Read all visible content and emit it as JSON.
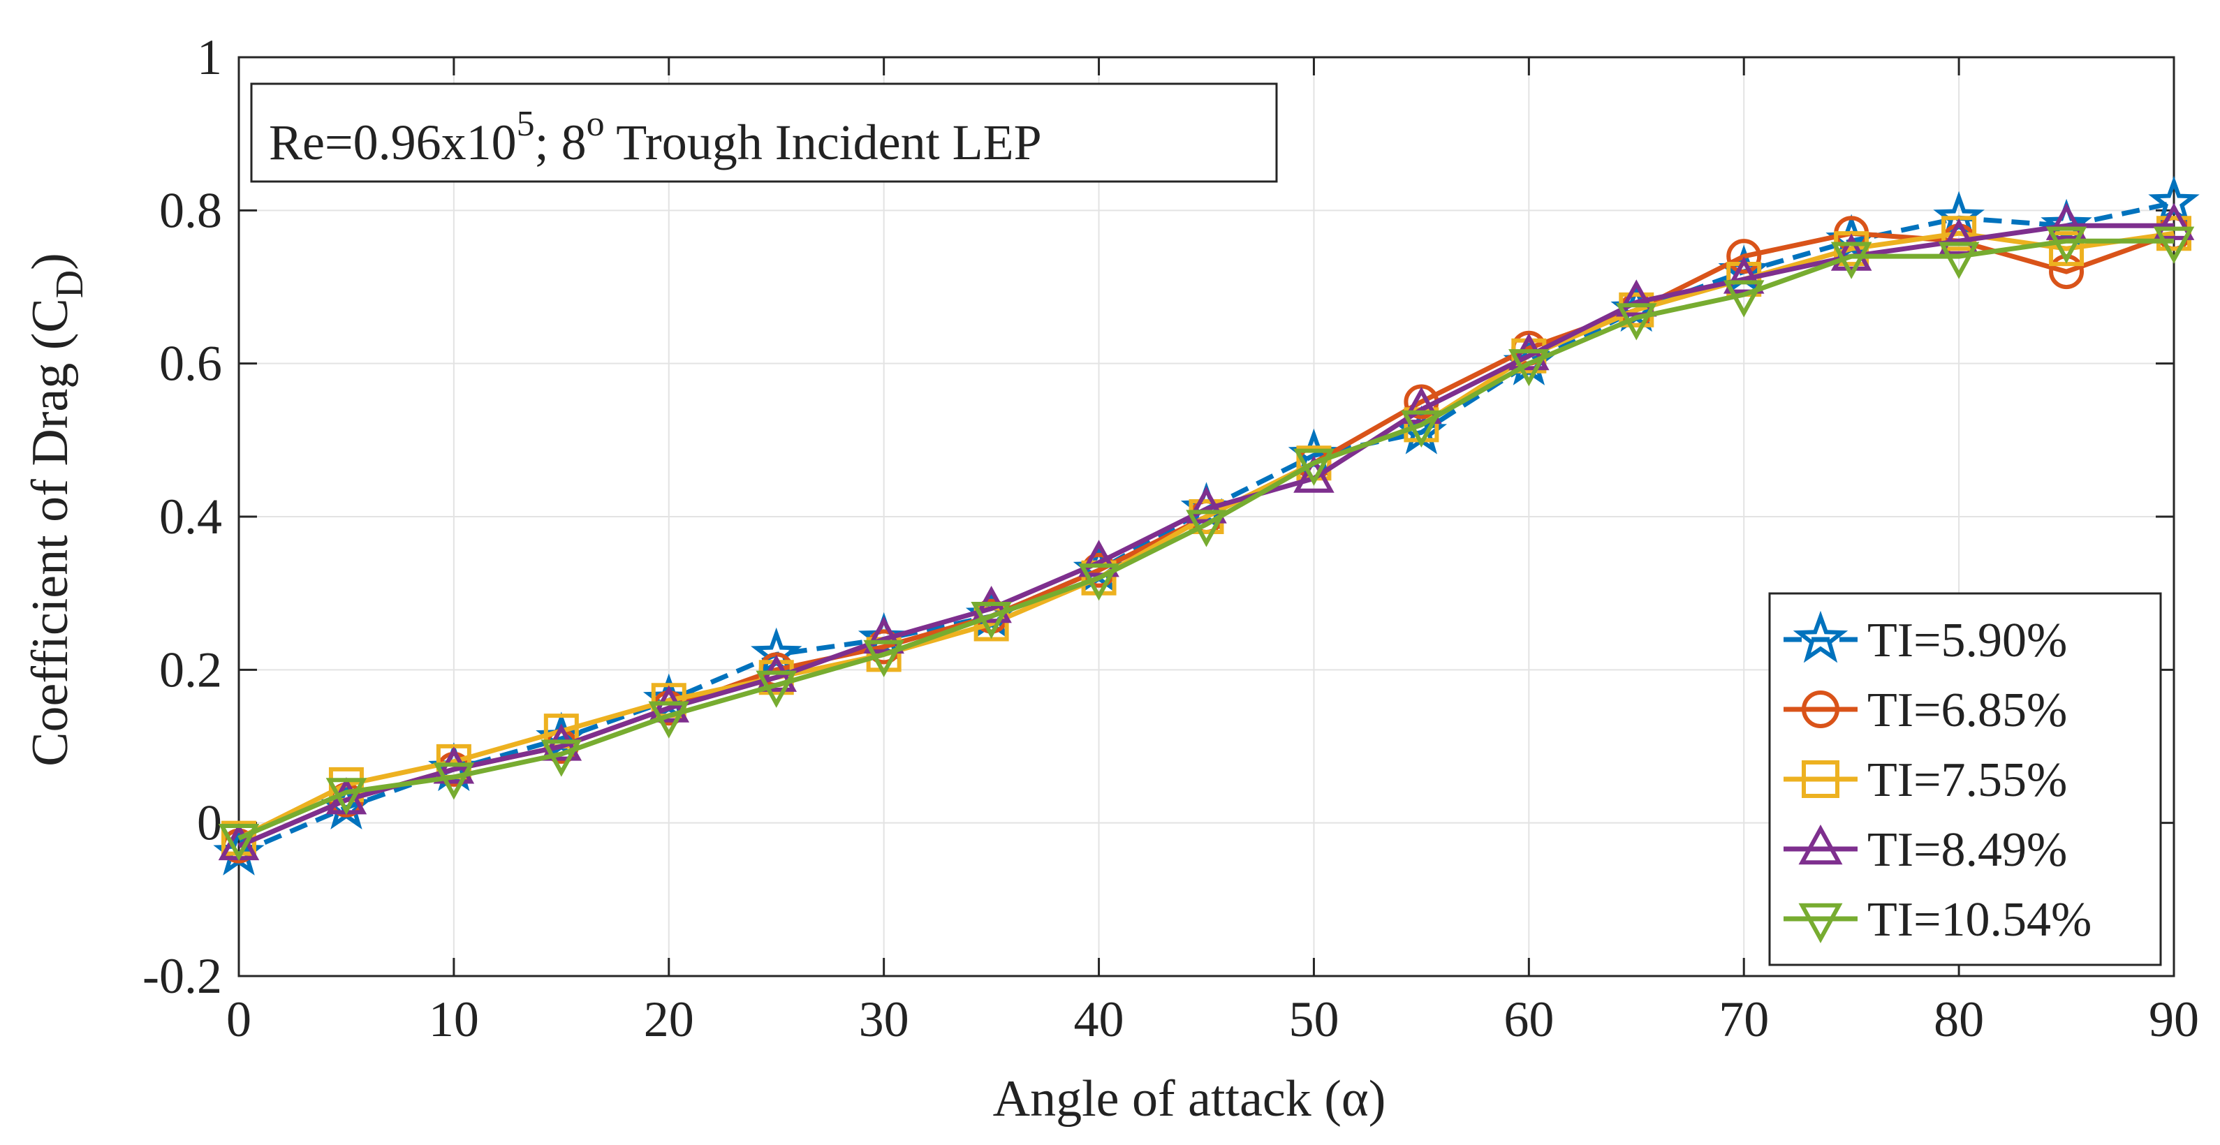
{
  "chart_data": {
    "type": "line",
    "title": "",
    "xlabel": "Angle of attack (α)",
    "ylabel": "Coefficient of Drag (C",
    "ylabel_subscript": "D",
    "ylabel_suffix": ")",
    "xlim": [
      0,
      90
    ],
    "ylim": [
      -0.2,
      1
    ],
    "xticks": [
      0,
      10,
      20,
      30,
      40,
      50,
      60,
      70,
      80,
      90
    ],
    "yticks": [
      -0.2,
      0,
      0.2,
      0.4,
      0.6,
      0.8,
      1
    ],
    "xtick_labels": [
      "0",
      "10",
      "20",
      "30",
      "40",
      "50",
      "60",
      "70",
      "80",
      "90"
    ],
    "ytick_labels": [
      "-0.2",
      "0",
      "0.2",
      "0.4",
      "0.6",
      "0.8",
      "1"
    ],
    "grid": true,
    "legend_position": "bottom-right",
    "annotation": {
      "prefix": "Re=0.96x10",
      "exponent": "5",
      "middle": "; 8",
      "degree": "o",
      "suffix": " Trough Incident LEP"
    },
    "x": [
      0,
      5,
      10,
      15,
      20,
      25,
      30,
      35,
      40,
      45,
      50,
      55,
      60,
      65,
      70,
      75,
      80,
      85,
      90
    ],
    "series": [
      {
        "name": "TI=5.90%",
        "color": "#0072BD",
        "marker": "star",
        "dashed": true,
        "values": [
          -0.04,
          0.02,
          0.07,
          0.11,
          0.16,
          0.22,
          0.24,
          0.27,
          0.33,
          0.41,
          0.48,
          0.51,
          0.6,
          0.67,
          0.72,
          0.76,
          0.79,
          0.78,
          0.81
        ]
      },
      {
        "name": "TI=6.85%",
        "color": "#D95319",
        "marker": "circle",
        "dashed": false,
        "values": [
          -0.03,
          0.03,
          0.07,
          0.1,
          0.15,
          0.2,
          0.23,
          0.27,
          0.33,
          0.4,
          0.47,
          0.55,
          0.62,
          0.67,
          0.74,
          0.77,
          0.76,
          0.72,
          0.77
        ]
      },
      {
        "name": "TI=7.55%",
        "color": "#EDB120",
        "marker": "square",
        "dashed": false,
        "values": [
          -0.02,
          0.05,
          0.08,
          0.12,
          0.16,
          0.19,
          0.22,
          0.26,
          0.32,
          0.4,
          0.47,
          0.52,
          0.61,
          0.67,
          0.71,
          0.75,
          0.77,
          0.75,
          0.77
        ]
      },
      {
        "name": "TI=8.49%",
        "color": "#7E2F8E",
        "marker": "triangle-up",
        "dashed": false,
        "values": [
          -0.03,
          0.03,
          0.07,
          0.1,
          0.15,
          0.19,
          0.24,
          0.28,
          0.34,
          0.41,
          0.45,
          0.54,
          0.61,
          0.68,
          0.71,
          0.74,
          0.76,
          0.78,
          0.78
        ]
      },
      {
        "name": "TI=10.54%",
        "color": "#77AC30",
        "marker": "triangle-down",
        "dashed": false,
        "values": [
          -0.02,
          0.04,
          0.06,
          0.09,
          0.14,
          0.18,
          0.22,
          0.27,
          0.32,
          0.39,
          0.47,
          0.52,
          0.6,
          0.66,
          0.69,
          0.74,
          0.74,
          0.76,
          0.76
        ]
      }
    ]
  }
}
